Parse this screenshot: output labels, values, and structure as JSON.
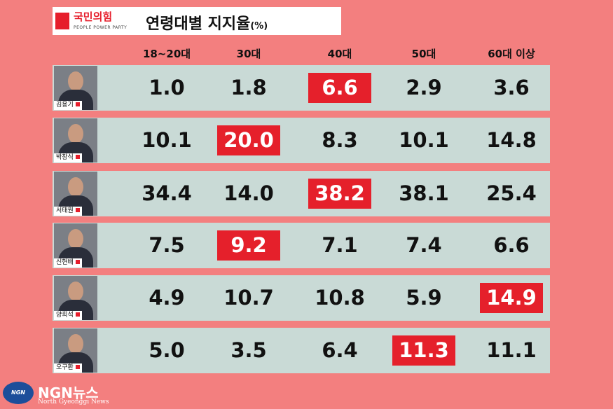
{
  "header": {
    "party": "국민의힘",
    "party_en": "PEOPLE POWER PARTY",
    "title": "연령대별 지지율",
    "unit": "(%)"
  },
  "table": {
    "columns": [
      "18~20대",
      "30대",
      "40대",
      "50대",
      "60대 이상"
    ],
    "rows": [
      {
        "name": "김용기",
        "values": [
          "1.0",
          "1.8",
          "6.6",
          "2.9",
          "3.6"
        ],
        "highlight": 2
      },
      {
        "name": "박창식",
        "values": [
          "10.1",
          "20.0",
          "8.3",
          "10.1",
          "14.8"
        ],
        "highlight": 1
      },
      {
        "name": "서태원",
        "values": [
          "34.4",
          "14.0",
          "38.2",
          "38.1",
          "25.4"
        ],
        "highlight": 2
      },
      {
        "name": "신현배",
        "values": [
          "7.5",
          "9.2",
          "7.1",
          "7.4",
          "6.6"
        ],
        "highlight": 1
      },
      {
        "name": "양희석",
        "values": [
          "4.9",
          "10.7",
          "10.8",
          "5.9",
          "14.9"
        ],
        "highlight": 4
      },
      {
        "name": "오구환",
        "values": [
          "5.0",
          "3.5",
          "6.4",
          "11.3",
          "11.1"
        ],
        "highlight": 3
      }
    ]
  },
  "footer": {
    "logo": "NGN NEWS",
    "name": "NGN뉴스",
    "sub": "North Gyeonggi News"
  }
}
